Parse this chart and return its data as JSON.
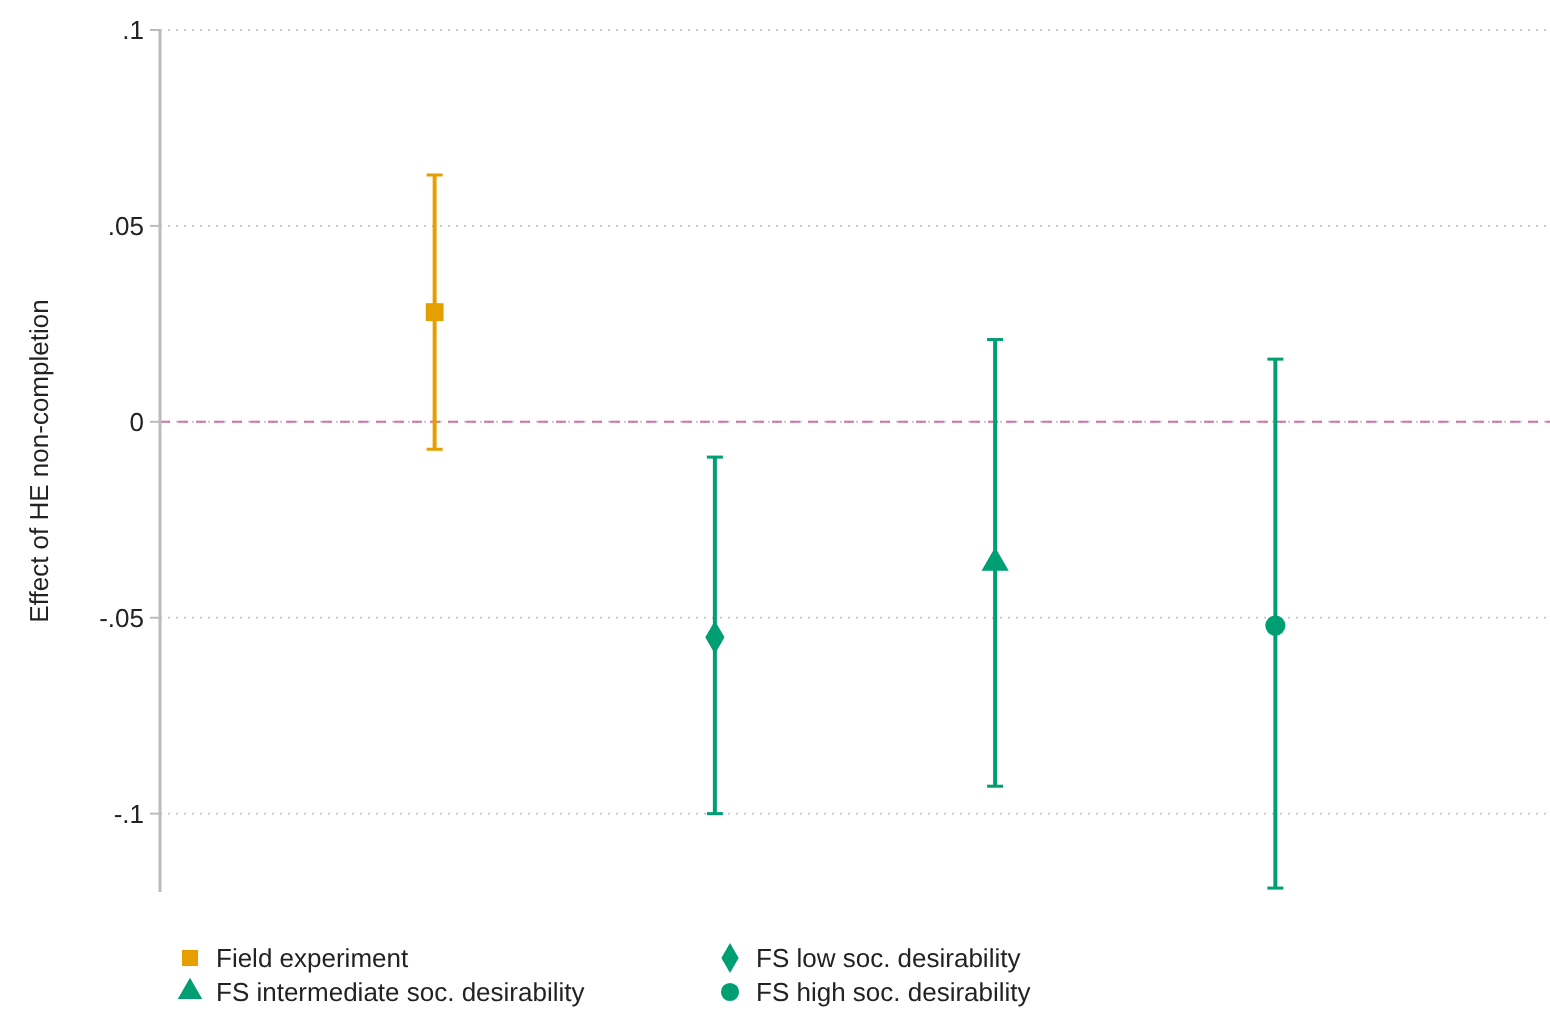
{
  "chart_data": {
    "type": "scatter",
    "ylabel": "Effect of HE non-completion",
    "categories": [
      null,
      null,
      null,
      null
    ],
    "series": [
      {
        "name": "Field experiment",
        "color": "#e69f00",
        "marker": "square",
        "values": [
          0.028,
          null,
          null,
          null
        ],
        "errors": [
          [
            -0.007,
            0.063
          ],
          null,
          null,
          null
        ]
      },
      {
        "name": "FS low soc. desirability",
        "color": "#009e73",
        "marker": "diamond",
        "values": [
          null,
          -0.055,
          null,
          null
        ],
        "errors": [
          null,
          [
            -0.1,
            -0.009
          ],
          null,
          null
        ]
      },
      {
        "name": "FS intermediate soc. desirability",
        "color": "#009e73",
        "marker": "triangle",
        "values": [
          null,
          null,
          -0.036,
          null
        ],
        "errors": [
          null,
          null,
          [
            -0.093,
            0.021
          ],
          null
        ]
      },
      {
        "name": "FS high soc. desirability",
        "color": "#009e73",
        "marker": "circle",
        "values": [
          null,
          null,
          null,
          -0.052
        ],
        "errors": [
          null,
          null,
          null,
          [
            -0.119,
            0.016
          ]
        ]
      }
    ],
    "ylim": [
      -0.12,
      0.1
    ],
    "yticks": [
      {
        "value": -0.1,
        "label": "-.1"
      },
      {
        "value": -0.05,
        "label": "-.05"
      },
      0,
      {
        "value": 0.05,
        "label": ".05"
      },
      {
        "value": 0.1,
        "label": ".1"
      }
    ],
    "ref_lines": [
      {
        "axis": "y",
        "value": 0,
        "color": "#d670a0",
        "line_style": "dashed"
      }
    ],
    "grid": "y",
    "legend": "bottom",
    "line_style": "solid"
  }
}
